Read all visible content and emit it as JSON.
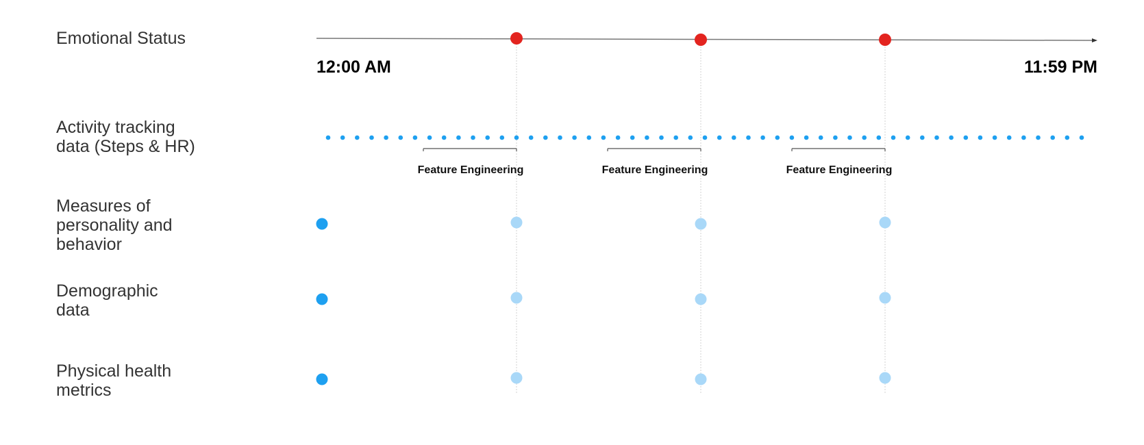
{
  "rows": {
    "emotional_status": [
      "Emotional Status"
    ],
    "activity": [
      "Activity tracking",
      "data (Steps & HR)"
    ],
    "measures": [
      "Measures of",
      "personality and",
      "behavior"
    ],
    "demographic": [
      "Demographic",
      "data"
    ],
    "physical": [
      "Physical health",
      "metrics"
    ]
  },
  "timeline": {
    "start_label": "12:00 AM",
    "end_label": "11:59 PM"
  },
  "feature_engineering": [
    "Feature Engineering",
    "Feature Engineering",
    "Feature Engineering"
  ],
  "colors": {
    "emotion_marker": "#e3241f",
    "static_marker": "#1ea0f0",
    "repeat_marker": "#a9d8f8",
    "activity_dot": "#1ea0f0",
    "timeline_line": "#777777",
    "guide_line": "#d0d0d0"
  },
  "markers": {
    "emotion_count": 3,
    "activity_dot_count": 53
  }
}
